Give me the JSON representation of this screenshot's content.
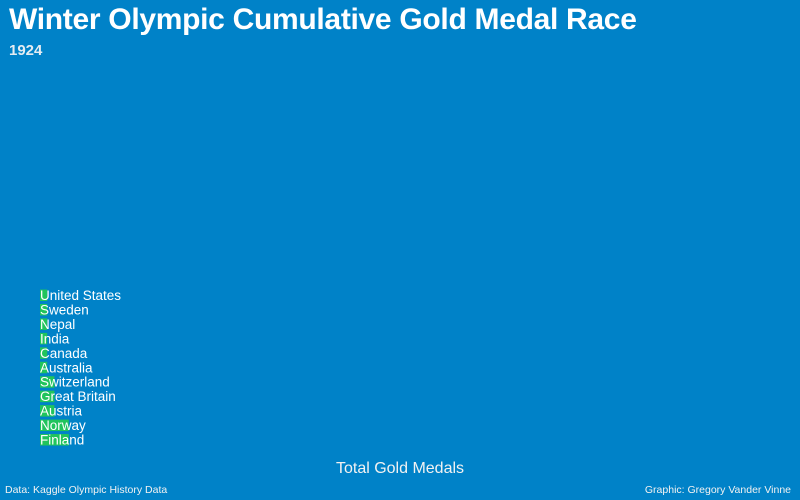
{
  "title": "Winter Olympic Cumulative Gold Medal Race",
  "year": "1924",
  "source": "Data: Kaggle Olympic History Data",
  "credit": "Graphic: Gregory Vander Vinne",
  "colors": {
    "background": "#0082c8",
    "bar": "#21c45c",
    "text": "#ffffff"
  },
  "chart_data": {
    "type": "bar",
    "orientation": "horizontal",
    "title": "Winter Olympic Cumulative Gold Medal Race",
    "subtitle": "1924",
    "xlabel": "Total Gold Medals",
    "ylabel": "",
    "categories": [
      "United States",
      "Sweden",
      "Nepal",
      "India",
      "Canada",
      "Australia",
      "Switzerland",
      "Great Britain",
      "Austria",
      "Norway",
      "Finland"
    ],
    "values": [
      1,
      1,
      1,
      1,
      1,
      1,
      2,
      2,
      2,
      4,
      4
    ],
    "xlim": [
      0,
      100
    ],
    "grid": false,
    "legend": "none"
  }
}
